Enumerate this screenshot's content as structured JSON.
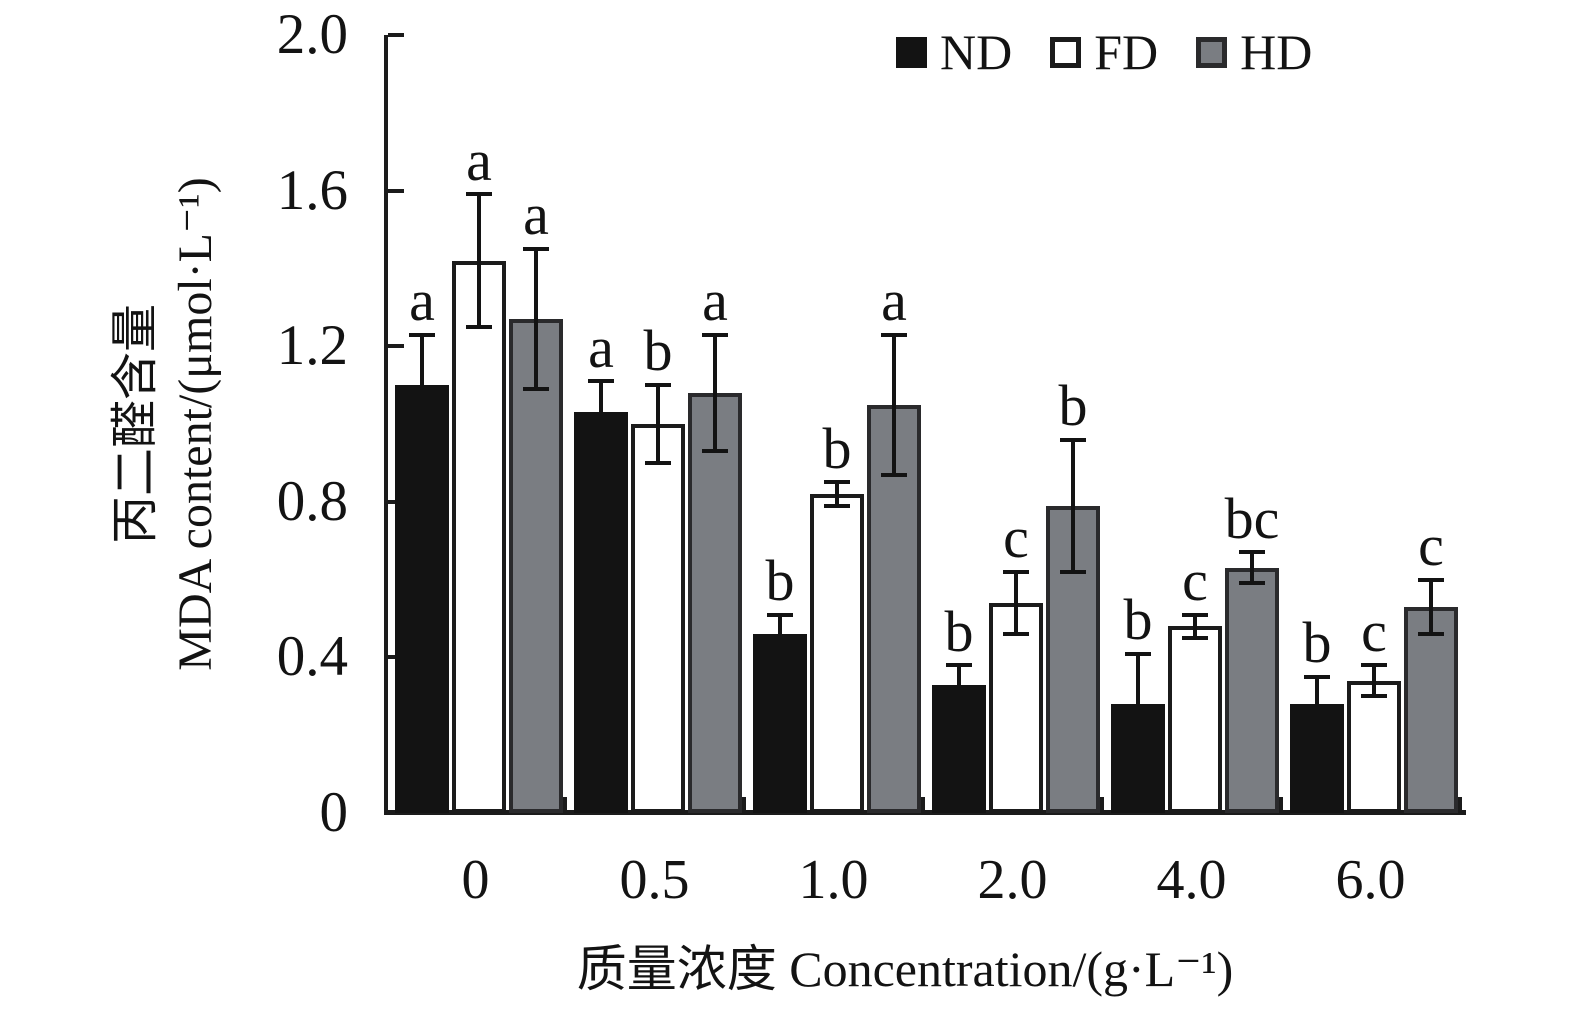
{
  "chart_data": {
    "type": "bar",
    "categories": [
      "0",
      "0.5",
      "1.0",
      "2.0",
      "4.0",
      "6.0"
    ],
    "series": [
      {
        "name": "ND",
        "fill": "#131313",
        "stroke": "#131313",
        "values": [
          1.1,
          1.03,
          0.46,
          0.33,
          0.28,
          0.28
        ],
        "errors": [
          0.13,
          0.08,
          0.05,
          0.05,
          0.13,
          0.07
        ],
        "letters": [
          "a",
          "a",
          "b",
          "b",
          "b",
          "b"
        ]
      },
      {
        "name": "FD",
        "fill": "#ffffff",
        "stroke": "#1b1b1b",
        "values": [
          1.42,
          1.0,
          0.82,
          0.54,
          0.48,
          0.34
        ],
        "errors": [
          0.17,
          0.1,
          0.03,
          0.08,
          0.03,
          0.04
        ],
        "letters": [
          "a",
          "b",
          "b",
          "c",
          "c",
          "c"
        ]
      },
      {
        "name": "HD",
        "fill": "#7a7d82",
        "stroke": "#2a2a2c",
        "values": [
          1.27,
          1.08,
          1.05,
          0.79,
          0.63,
          0.53
        ],
        "errors": [
          0.18,
          0.15,
          0.18,
          0.17,
          0.04,
          0.07
        ],
        "letters": [
          "a",
          "a",
          "a",
          "b",
          "bc",
          "c"
        ]
      }
    ],
    "xlabel": "质量浓度 Concentration/(g·L⁻¹)",
    "ylabel_cn": "丙二醛含量",
    "ylabel_en": "MDA content/(μmol·L⁻¹)",
    "ylim": [
      0,
      2.0
    ],
    "yticks": [
      0,
      0.4,
      0.8,
      1.2,
      1.6,
      2.0
    ],
    "ytick_labels": [
      "0",
      "0.4",
      "0.8",
      "1.2",
      "1.6",
      "2.0"
    ],
    "legend_position": "top-right",
    "grid": false,
    "error_bars": true
  }
}
